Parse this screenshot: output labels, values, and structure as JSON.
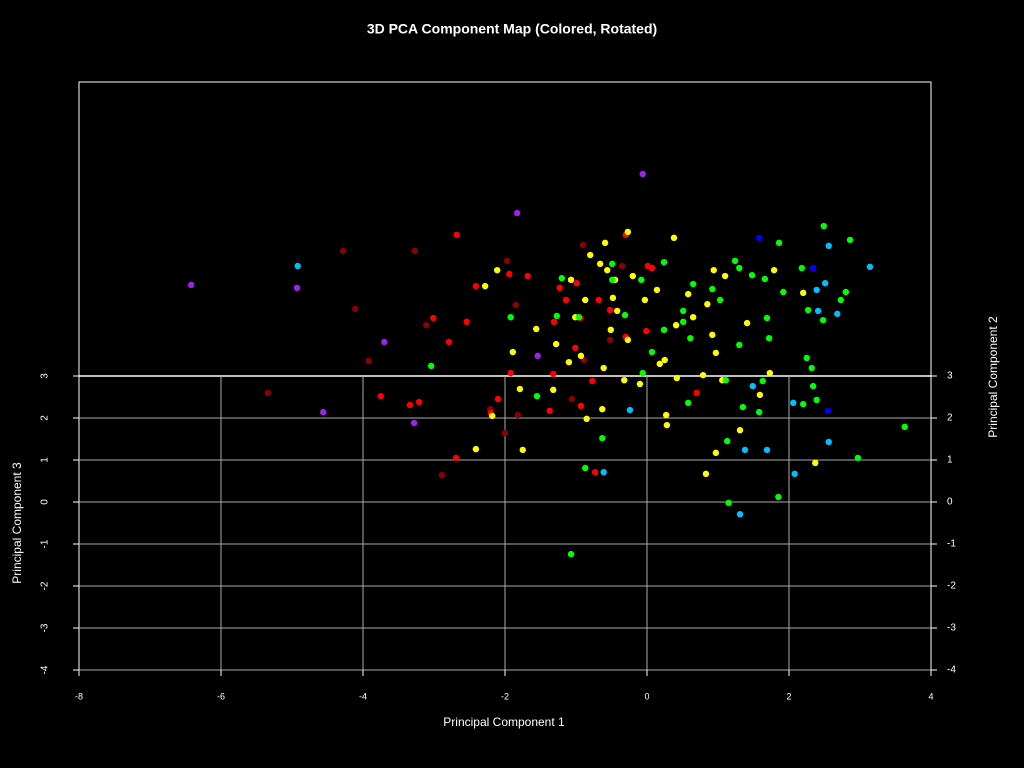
{
  "chart_data": {
    "type": "scatter",
    "title": "3D PCA Component Map (Colored, Rotated)",
    "x_label": "Principal Component 1",
    "y_label": "Principal Component 3",
    "y2_label": "Principal Component 2",
    "xlim": [
      -8,
      4
    ],
    "xticks": [
      -8,
      -6,
      -4,
      -2,
      0,
      2,
      4
    ],
    "ylim": [
      -4,
      10
    ],
    "yticks": [
      3,
      2,
      1,
      0,
      -1,
      -2,
      -3,
      -4
    ],
    "y2lim": [
      -4,
      10
    ],
    "y2ticks": [
      3,
      2,
      1,
      0,
      -1,
      -2,
      -3,
      -4
    ],
    "grid": true,
    "series": [
      {
        "color": "#a020f0",
        "x": [
          -6.42,
          -4.93,
          -4.56,
          -3.7,
          -3.28,
          -1.83,
          -0.06,
          -1.54
        ],
        "values": [
          5.17,
          5.1,
          2.14,
          3.81,
          1.88,
          6.88,
          7.81,
          3.48
        ]
      },
      {
        "color": "#0000ff",
        "x": [
          1.58,
          2.34,
          2.55
        ],
        "values": [
          6.29,
          5.57,
          2.17
        ]
      },
      {
        "color": "#00bfff",
        "x": [
          -4.92,
          2.56,
          3.14,
          2.51,
          2.39,
          2.68,
          2.41,
          2.06,
          1.49,
          2.56,
          1.38,
          1.69,
          2.08,
          1.31,
          -0.61,
          -0.24
        ],
        "values": [
          5.62,
          6.1,
          5.6,
          5.21,
          5.05,
          4.48,
          4.55,
          2.36,
          2.76,
          1.43,
          1.24,
          1.24,
          0.67,
          -0.29,
          0.71,
          2.19
        ]
      },
      {
        "color": "#8b0000",
        "x": [
          -4.28,
          -3.27,
          -4.11,
          -3.92,
          -5.34,
          -2.89,
          -3.11,
          -1.97,
          -1.85,
          -0.9,
          -2.0,
          -1.82,
          -1.06,
          -0.89,
          -0.52,
          -0.35,
          -2.21
        ],
        "values": [
          5.98,
          5.98,
          4.6,
          3.36,
          2.6,
          0.64,
          4.21,
          5.74,
          4.69,
          6.12,
          1.64,
          2.07,
          2.45,
          3.38,
          3.86,
          5.62,
          2.21
        ]
      },
      {
        "color": "#ff0000",
        "x": [
          -2.68,
          -3.01,
          -2.54,
          -2.79,
          -3.75,
          -3.34,
          -3.21,
          -2.69,
          -2.41,
          -1.68,
          -1.94,
          -2.1,
          -2.2,
          -1.92,
          -1.31,
          -1.23,
          -0.99,
          -1.14,
          -1.32,
          -1.37,
          -0.93,
          -0.73,
          -0.77,
          -0.3,
          0.01,
          0.07,
          -0.52,
          -0.68,
          -0.01,
          -0.3,
          0.7,
          -1.01,
          -0.94
        ],
        "values": [
          6.36,
          4.38,
          4.29,
          3.81,
          2.52,
          2.31,
          2.38,
          1.05,
          5.14,
          5.38,
          5.43,
          2.45,
          2.12,
          3.07,
          4.29,
          5.1,
          5.21,
          4.81,
          3.05,
          2.17,
          2.29,
          0.71,
          2.88,
          6.36,
          5.62,
          5.57,
          4.57,
          4.81,
          4.07,
          3.93,
          2.6,
          3.67,
          4.38
        ]
      },
      {
        "color": "#ffff00",
        "x": [
          -2.11,
          -2.28,
          -2.41,
          -2.18,
          -1.75,
          -1.79,
          -1.89,
          -1.32,
          -1.1,
          -0.85,
          -0.63,
          -1.01,
          -0.87,
          -0.59,
          -0.8,
          -0.56,
          -0.27,
          0.38,
          -0.2,
          -0.45,
          -0.51,
          -0.27,
          -0.32,
          -0.1,
          0.18,
          0.25,
          0.28,
          0.27,
          0.42,
          0.58,
          0.65,
          0.85,
          0.94,
          1.1,
          0.92,
          0.97,
          1.06,
          0.83,
          0.97,
          1.31,
          1.41,
          1.79,
          2.2,
          1.73,
          2.37,
          0.41,
          0.14,
          -0.48,
          -0.66,
          -1.07,
          -1.56,
          -1.28,
          -0.93,
          -0.61,
          -0.03,
          -0.42,
          0.79,
          1.59
        ],
        "values": [
          5.52,
          5.14,
          1.26,
          2.05,
          1.24,
          2.69,
          3.57,
          2.67,
          3.33,
          1.98,
          2.21,
          4.4,
          4.81,
          6.17,
          5.88,
          5.52,
          6.43,
          6.29,
          5.38,
          5.29,
          4.1,
          3.86,
          2.9,
          2.81,
          3.29,
          3.38,
          1.83,
          2.07,
          2.95,
          4.95,
          4.4,
          4.71,
          5.52,
          5.38,
          3.98,
          3.55,
          2.9,
          0.67,
          1.17,
          1.71,
          4.26,
          5.52,
          4.98,
          3.07,
          0.93,
          4.21,
          5.05,
          4.86,
          5.67,
          5.29,
          4.12,
          3.76,
          3.48,
          3.19,
          4.81,
          4.55,
          3.02,
          2.55
        ]
      },
      {
        "color": "#00ff00",
        "x": [
          -3.04,
          -1.92,
          -1.2,
          -1.55,
          -0.87,
          -1.07,
          -0.63,
          -0.06,
          0.07,
          -0.49,
          -0.49,
          -0.08,
          0.24,
          0.65,
          0.51,
          0.58,
          0.92,
          1.24,
          1.3,
          1.48,
          1.66,
          1.86,
          2.49,
          2.86,
          2.18,
          1.92,
          2.8,
          2.73,
          2.27,
          2.48,
          1.69,
          1.72,
          1.3,
          2.25,
          2.32,
          1.63,
          1.11,
          1.35,
          1.58,
          2.34,
          2.2,
          2.39,
          1.13,
          1.15,
          1.85,
          2.97,
          3.63,
          0.24,
          1.03,
          0.61,
          -0.31,
          -0.96,
          -1.27,
          0.51
        ],
        "values": [
          3.24,
          4.4,
          5.33,
          2.52,
          0.81,
          -1.24,
          1.52,
          3.07,
          3.57,
          5.29,
          5.67,
          5.29,
          5.71,
          5.19,
          4.29,
          2.36,
          5.07,
          5.74,
          5.57,
          5.4,
          5.31,
          6.17,
          6.57,
          6.24,
          5.57,
          5.0,
          5.0,
          4.81,
          4.57,
          4.33,
          4.38,
          3.9,
          3.74,
          3.43,
          3.19,
          2.88,
          2.9,
          2.26,
          2.14,
          2.76,
          2.33,
          2.43,
          1.45,
          -0.02,
          0.12,
          1.05,
          1.79,
          4.1,
          4.81,
          3.9,
          4.45,
          4.4,
          4.43,
          4.55
        ]
      }
    ]
  }
}
